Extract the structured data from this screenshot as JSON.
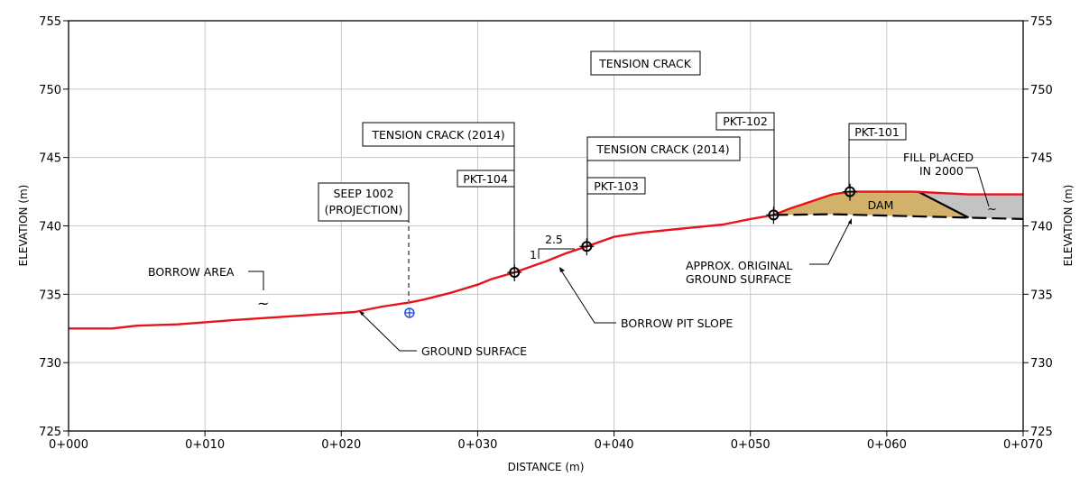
{
  "chart_data": {
    "type": "cross-section",
    "xlabel": "DISTANCE (m)",
    "ylabel_left": "ELEVATION (m)",
    "ylabel_right": "ELEVATION (m)",
    "x_range": [
      0,
      70
    ],
    "y_range": [
      725,
      755
    ],
    "x_ticks": [
      {
        "value": 0,
        "label": "0+000"
      },
      {
        "value": 10,
        "label": "0+010"
      },
      {
        "value": 20,
        "label": "0+020"
      },
      {
        "value": 30,
        "label": "0+030"
      },
      {
        "value": 40,
        "label": "0+040"
      },
      {
        "value": 50,
        "label": "0+050"
      },
      {
        "value": 60,
        "label": "0+060"
      },
      {
        "value": 70,
        "label": "0+070"
      }
    ],
    "y_ticks": [
      {
        "value": 725,
        "label": "725"
      },
      {
        "value": 730,
        "label": "730"
      },
      {
        "value": 735,
        "label": "735"
      },
      {
        "value": 740,
        "label": "740"
      },
      {
        "value": 745,
        "label": "745"
      },
      {
        "value": 750,
        "label": "750"
      },
      {
        "value": 755,
        "label": "755"
      }
    ],
    "grid": true,
    "ground_surface": {
      "color": "#e8141b",
      "points": [
        [
          0,
          732.5
        ],
        [
          3.2,
          732.5
        ],
        [
          5,
          732.7
        ],
        [
          8,
          732.8
        ],
        [
          10,
          732.95
        ],
        [
          12,
          733.1
        ],
        [
          15,
          733.3
        ],
        [
          18,
          733.5
        ],
        [
          21,
          733.7
        ],
        [
          23,
          734.1
        ],
        [
          25,
          734.4
        ],
        [
          26,
          734.6
        ],
        [
          28,
          735.1
        ],
        [
          30,
          735.7
        ],
        [
          31,
          736.1
        ],
        [
          32.7,
          736.6
        ],
        [
          35,
          737.4
        ],
        [
          36.5,
          738.0
        ],
        [
          38,
          738.5
        ],
        [
          40,
          739.2
        ],
        [
          42,
          739.5
        ],
        [
          45,
          739.8
        ],
        [
          48,
          740.1
        ],
        [
          50,
          740.5
        ],
        [
          51.7,
          740.8
        ],
        [
          53,
          741.3
        ],
        [
          54.5,
          741.8
        ],
        [
          56,
          742.3
        ],
        [
          57.3,
          742.5
        ],
        [
          59,
          742.5
        ],
        [
          62,
          742.5
        ],
        [
          66,
          742.3
        ],
        [
          68,
          742.3
        ],
        [
          70,
          742.3
        ]
      ]
    },
    "original_ground": {
      "points": [
        [
          51.7,
          740.8
        ],
        [
          56,
          740.85
        ],
        [
          60,
          740.75
        ],
        [
          66,
          740.6
        ],
        [
          70,
          740.5
        ]
      ]
    },
    "dam_fill": {
      "color": "#d2b26a",
      "points": [
        [
          51.7,
          740.8
        ],
        [
          54.5,
          741.8
        ],
        [
          56,
          742.3
        ],
        [
          57.3,
          742.5
        ],
        [
          62.3,
          742.5
        ],
        [
          66,
          740.6
        ],
        [
          60,
          740.75
        ],
        [
          56,
          740.85
        ]
      ]
    },
    "fill_2000": {
      "color": "#c3c3c3",
      "points": [
        [
          62.3,
          742.5
        ],
        [
          66,
          742.3
        ],
        [
          70,
          742.3
        ],
        [
          70,
          740.5
        ],
        [
          66,
          740.6
        ]
      ]
    },
    "boreholes": [
      {
        "name": "PKT-104",
        "x": 32.7,
        "y": 736.6
      },
      {
        "name": "PKT-103",
        "x": 38.0,
        "y": 738.5
      },
      {
        "name": "PKT-102",
        "x": 51.7,
        "y": 740.8
      },
      {
        "name": "PKT-101",
        "x": 57.3,
        "y": 742.5
      }
    ],
    "seep": {
      "x": 25.0,
      "y": 734.1,
      "color": "#1f4fe0"
    },
    "labels": {
      "tension_crack_top": "TENSION CRACK",
      "tension_crack_2014_a": "TENSION CRACK (2014)",
      "tension_crack_2014_b": "TENSION CRACK (2014)",
      "pkt104": "PKT-104",
      "pkt103": "PKT-103",
      "pkt102": "PKT-102",
      "pkt101": "PKT-101",
      "seep_line1": "SEEP 1002",
      "seep_line2": "(PROJECTION)",
      "borrow_area": "BORROW AREA",
      "ground_surface": "GROUND SURFACE",
      "borrow_pit_slope": "BORROW PIT SLOPE",
      "approx_line1": "APPROX. ORIGINAL",
      "approx_line2": "GROUND SURFACE",
      "fill_line1": "FILL PLACED",
      "fill_line2": "IN 2000",
      "dam": "DAM",
      "slope_h": "2.5",
      "slope_v": "1",
      "tilde": "~"
    }
  }
}
